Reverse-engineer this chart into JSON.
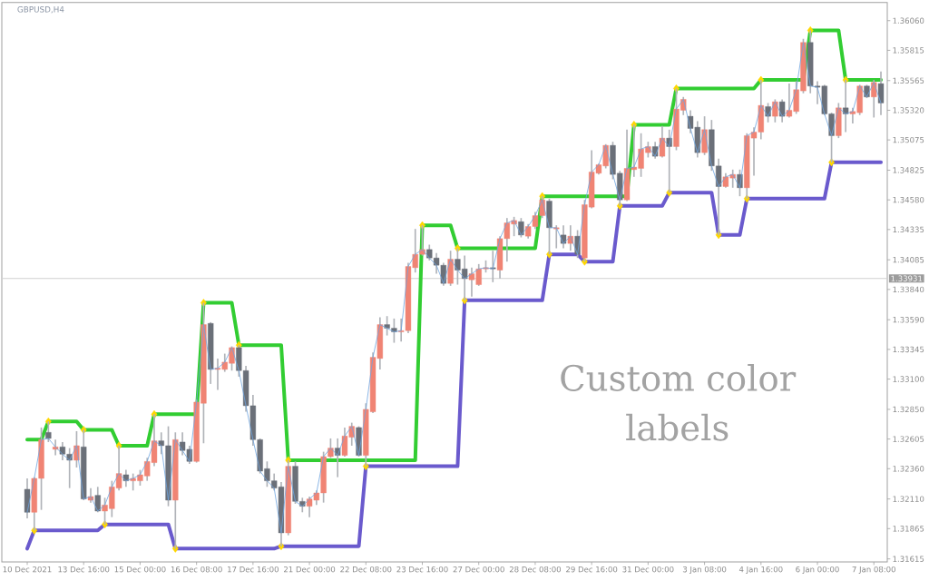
{
  "chart_data": {
    "type": "candlestick",
    "title": "GBPUSD,H4",
    "categories": [
      "10 Dec 2021",
      null,
      null,
      null,
      null,
      null,
      null,
      null,
      "13 Dec 16:00",
      null,
      null,
      null,
      null,
      null,
      null,
      null,
      "15 Dec 00:00",
      null,
      null,
      null,
      null,
      null,
      null,
      null,
      "16 Dec 08:00",
      null,
      null,
      null,
      null,
      null,
      null,
      null,
      "17 Dec 16:00",
      null,
      null,
      null,
      null,
      null,
      null,
      null,
      "21 Dec 00:00",
      null,
      null,
      null,
      null,
      null,
      null,
      null,
      "22 Dec 08:00",
      null,
      null,
      null,
      null,
      null,
      null,
      null,
      "23 Dec 16:00",
      null,
      null,
      null,
      null,
      null,
      null,
      null,
      "27 Dec 00:00",
      null,
      null,
      null,
      null,
      null,
      null,
      null,
      "28 Dec 08:00",
      null,
      null,
      null,
      null,
      null,
      null,
      null,
      "29 Dec 16:00",
      null,
      null,
      null,
      null,
      null,
      null,
      null,
      "31 Dec 00:00",
      null,
      null,
      null,
      null,
      null,
      null,
      null,
      "3 Jan 08:00",
      null,
      null,
      null,
      null,
      null,
      null,
      null,
      "4 Jan 16:00",
      null,
      null,
      null,
      null,
      null,
      null,
      null,
      "6 Jan 00:00",
      null,
      null,
      null,
      null,
      null,
      null,
      null,
      "7 Jan 08:00",
      null
    ],
    "ohlc": [
      [
        1.3219,
        1.3228,
        1.3195,
        1.32
      ],
      [
        1.32,
        1.3229,
        1.3185,
        1.3228
      ],
      [
        1.3228,
        1.327,
        1.3202,
        1.326
      ],
      [
        1.3266,
        1.3275,
        1.3258,
        1.3261
      ],
      [
        1.3252,
        1.326,
        1.3247,
        1.3254
      ],
      [
        1.3254,
        1.3258,
        1.3243,
        1.3248
      ],
      [
        1.3248,
        1.3253,
        1.322,
        1.3243
      ],
      [
        1.3243,
        1.3267,
        1.3237,
        1.3255
      ],
      [
        1.3254,
        1.3268,
        1.321,
        1.3211
      ],
      [
        1.321,
        1.322,
        1.3208,
        1.3213
      ],
      [
        1.3214,
        1.3221,
        1.32,
        1.3201
      ],
      [
        1.3201,
        1.3212,
        1.319,
        1.3206
      ],
      [
        1.3203,
        1.3226,
        1.3196,
        1.3221
      ],
      [
        1.322,
        1.3255,
        1.3218,
        1.3232
      ],
      [
        1.3231,
        1.3235,
        1.3221,
        1.3226
      ],
      [
        1.3226,
        1.3232,
        1.3218,
        1.3228
      ],
      [
        1.3226,
        1.3235,
        1.3222,
        1.3231
      ],
      [
        1.323,
        1.3245,
        1.3226,
        1.3242
      ],
      [
        1.3241,
        1.3281,
        1.3238,
        1.3259
      ],
      [
        1.3259,
        1.3266,
        1.3248,
        1.3255
      ],
      [
        1.3255,
        1.3271,
        1.3205,
        1.321
      ],
      [
        1.321,
        1.3266,
        1.317,
        1.326
      ],
      [
        1.3258,
        1.3266,
        1.3247,
        1.3251
      ],
      [
        1.3252,
        1.3255,
        1.324,
        1.3242
      ],
      [
        1.3242,
        1.3293,
        1.3241,
        1.3291
      ],
      [
        1.329,
        1.3373,
        1.3257,
        1.3355
      ],
      [
        1.3356,
        1.3357,
        1.3306,
        1.3318
      ],
      [
        1.3318,
        1.3327,
        1.3301,
        1.3319
      ],
      [
        1.3318,
        1.3331,
        1.3316,
        1.3324
      ],
      [
        1.3323,
        1.3337,
        1.3317,
        1.3336
      ],
      [
        1.3336,
        1.3338,
        1.3312,
        1.3317
      ],
      [
        1.3317,
        1.3321,
        1.3283,
        1.3288
      ],
      [
        1.3288,
        1.3297,
        1.3255,
        1.326
      ],
      [
        1.326,
        1.3261,
        1.3232,
        1.3234
      ],
      [
        1.3236,
        1.3242,
        1.3221,
        1.3226
      ],
      [
        1.3226,
        1.3232,
        1.3218,
        1.322
      ],
      [
        1.3221,
        1.3225,
        1.3172,
        1.3183
      ],
      [
        1.3183,
        1.3243,
        1.3181,
        1.3238
      ],
      [
        1.3238,
        1.3242,
        1.3207,
        1.3209
      ],
      [
        1.3209,
        1.3212,
        1.32,
        1.3205
      ],
      [
        1.3205,
        1.3213,
        1.3196,
        1.3211
      ],
      [
        1.321,
        1.3218,
        1.3206,
        1.3216
      ],
      [
        1.3216,
        1.325,
        1.3208,
        1.3246
      ],
      [
        1.3246,
        1.3261,
        1.3245,
        1.3253
      ],
      [
        1.3253,
        1.3261,
        1.3229,
        1.3247
      ],
      [
        1.3247,
        1.327,
        1.3246,
        1.3263
      ],
      [
        1.3262,
        1.3274,
        1.3255,
        1.3271
      ],
      [
        1.327,
        1.3271,
        1.3246,
        1.3247
      ],
      [
        1.3247,
        1.329,
        1.3238,
        1.3285
      ],
      [
        1.3283,
        1.3332,
        1.3282,
        1.3328
      ],
      [
        1.3327,
        1.3361,
        1.3318,
        1.3355
      ],
      [
        1.3355,
        1.3362,
        1.3346,
        1.3352
      ],
      [
        1.3352,
        1.336,
        1.334,
        1.3349
      ],
      [
        1.3349,
        1.336,
        1.3341,
        1.335
      ],
      [
        1.335,
        1.3406,
        1.3348,
        1.3403
      ],
      [
        1.3402,
        1.3434,
        1.3398,
        1.3413
      ],
      [
        1.3413,
        1.3437,
        1.3412,
        1.3417
      ],
      [
        1.3417,
        1.3421,
        1.3408,
        1.341
      ],
      [
        1.341,
        1.3414,
        1.3397,
        1.3404
      ],
      [
        1.3404,
        1.3406,
        1.3387,
        1.3389
      ],
      [
        1.3389,
        1.3416,
        1.3387,
        1.3409
      ],
      [
        1.3409,
        1.3418,
        1.3388,
        1.34
      ],
      [
        1.3401,
        1.3412,
        1.3375,
        1.3393
      ],
      [
        1.3392,
        1.3402,
        1.3378,
        1.3397
      ],
      [
        1.3388,
        1.3405,
        1.3387,
        1.3401
      ],
      [
        1.3401,
        1.3408,
        1.3398,
        1.3402
      ],
      [
        1.3402,
        1.3416,
        1.339,
        1.3401
      ],
      [
        1.34,
        1.3428,
        1.3393,
        1.3426
      ],
      [
        1.3426,
        1.3443,
        1.3407,
        1.3439
      ],
      [
        1.3438,
        1.3444,
        1.3428,
        1.3441
      ],
      [
        1.344,
        1.3443,
        1.3427,
        1.3429
      ],
      [
        1.3428,
        1.3438,
        1.3426,
        1.3436
      ],
      [
        1.3436,
        1.3448,
        1.3434,
        1.3445
      ],
      [
        1.3445,
        1.3461,
        1.3443,
        1.3458
      ],
      [
        1.3457,
        1.3459,
        1.3413,
        1.3435
      ],
      [
        1.3434,
        1.3437,
        1.3418,
        1.3435
      ],
      [
        1.3429,
        1.3437,
        1.3418,
        1.3422
      ],
      [
        1.3422,
        1.3437,
        1.3416,
        1.3428
      ],
      [
        1.3428,
        1.3433,
        1.341,
        1.3413
      ],
      [
        1.341,
        1.3458,
        1.3407,
        1.3454
      ],
      [
        1.3452,
        1.3499,
        1.3451,
        1.3481
      ],
      [
        1.348,
        1.3488,
        1.3479,
        1.3487
      ],
      [
        1.3486,
        1.3504,
        1.3484,
        1.3503
      ],
      [
        1.3503,
        1.3506,
        1.3475,
        1.3479
      ],
      [
        1.348,
        1.3482,
        1.3453,
        1.3458
      ],
      [
        1.3458,
        1.3516,
        1.3457,
        1.3484
      ],
      [
        1.3483,
        1.352,
        1.3477,
        1.3485
      ],
      [
        1.3484,
        1.3513,
        1.3477,
        1.35
      ],
      [
        1.3497,
        1.3506,
        1.3493,
        1.3502
      ],
      [
        1.3502,
        1.3506,
        1.3492,
        1.3494
      ],
      [
        1.3494,
        1.3519,
        1.3493,
        1.3509
      ],
      [
        1.3509,
        1.3516,
        1.3464,
        1.3502
      ],
      [
        1.3502,
        1.355,
        1.3499,
        1.3533
      ],
      [
        1.3532,
        1.3543,
        1.3528,
        1.3541
      ],
      [
        1.3527,
        1.3532,
        1.3513,
        1.3517
      ],
      [
        1.3518,
        1.3523,
        1.3493,
        1.3497
      ],
      [
        1.3497,
        1.3527,
        1.3495,
        1.3516
      ],
      [
        1.3516,
        1.3524,
        1.3482,
        1.3486
      ],
      [
        1.3486,
        1.3492,
        1.3429,
        1.3469
      ],
      [
        1.3469,
        1.348,
        1.3468,
        1.3477
      ],
      [
        1.3476,
        1.3483,
        1.3468,
        1.3479
      ],
      [
        1.3479,
        1.3483,
        1.3461,
        1.3468
      ],
      [
        1.3468,
        1.3513,
        1.3459,
        1.3511
      ],
      [
        1.3509,
        1.3518,
        1.3478,
        1.3514
      ],
      [
        1.3514,
        1.3557,
        1.3508,
        1.3536
      ],
      [
        1.3535,
        1.3538,
        1.3522,
        1.3527
      ],
      [
        1.3527,
        1.3541,
        1.3522,
        1.3539
      ],
      [
        1.3539,
        1.3541,
        1.3522,
        1.3527
      ],
      [
        1.3527,
        1.3554,
        1.3526,
        1.3532
      ],
      [
        1.3531,
        1.3556,
        1.3529,
        1.3549
      ],
      [
        1.3548,
        1.3591,
        1.3546,
        1.3588
      ],
      [
        1.3588,
        1.3598,
        1.3546,
        1.3552
      ],
      [
        1.3552,
        1.3556,
        1.3537,
        1.3551
      ],
      [
        1.3552,
        1.3553,
        1.3528,
        1.3529
      ],
      [
        1.3529,
        1.353,
        1.3489,
        1.3511
      ],
      [
        1.3511,
        1.3538,
        1.3509,
        1.3534
      ],
      [
        1.3534,
        1.3557,
        1.3514,
        1.3529
      ],
      [
        1.3529,
        1.3534,
        1.3521,
        1.3531
      ],
      [
        1.353,
        1.3553,
        1.3528,
        1.3552
      ],
      [
        1.3552,
        1.3553,
        1.3542,
        1.3543
      ],
      [
        1.3543,
        1.3557,
        1.3526,
        1.3555
      ],
      [
        1.3554,
        1.3564,
        1.3528,
        1.3538
      ]
    ],
    "colors": [
      "#6b7079",
      "#f08474",
      "#f08474",
      "#6b7079",
      "#f08474",
      "#6b7079",
      "#6b7079",
      "#f08474",
      "#6b7079",
      "#f08474",
      "#6b7079",
      "#f08474",
      "#f08474",
      "#f08474",
      "#6b7079",
      "#f08474",
      "#f08474",
      "#f08474",
      "#f08474",
      "#6b7079",
      "#6b7079",
      "#f08474",
      "#6b7079",
      "#6b7079",
      "#f08474",
      "#f08474",
      "#6b7079",
      "#f08474",
      "#f08474",
      "#f08474",
      "#6b7079",
      "#6b7079",
      "#6b7079",
      "#6b7079",
      "#6b7079",
      "#6b7079",
      "#6b7079",
      "#f08474",
      "#6b7079",
      "#6b7079",
      "#f08474",
      "#f08474",
      "#f08474",
      "#f08474",
      "#6b7079",
      "#f08474",
      "#f08474",
      "#6b7079",
      "#f08474",
      "#f08474",
      "#f08474",
      "#6b7079",
      "#6b7079",
      "#f08474",
      "#f08474",
      "#f08474",
      "#f08474",
      "#6b7079",
      "#6b7079",
      "#6b7079",
      "#f08474",
      "#6b7079",
      "#6b7079",
      "#f08474",
      "#f08474",
      "#f08474",
      "#6b7079",
      "#f08474",
      "#f08474",
      "#f08474",
      "#6b7079",
      "#f08474",
      "#f08474",
      "#f08474",
      "#6b7079",
      "#f08474",
      "#6b7079",
      "#f08474",
      "#6b7079",
      "#f08474",
      "#f08474",
      "#f08474",
      "#f08474",
      "#6b7079",
      "#6b7079",
      "#f08474",
      "#f08474",
      "#f08474",
      "#f08474",
      "#6b7079",
      "#f08474",
      "#6b7079",
      "#f08474",
      "#f08474",
      "#6b7079",
      "#6b7079",
      "#f08474",
      "#6b7079",
      "#6b7079",
      "#f08474",
      "#f08474",
      "#6b7079",
      "#f08474",
      "#f08474",
      "#f08474",
      "#6b7079",
      "#f08474",
      "#6b7079",
      "#f08474",
      "#f08474",
      "#f08474",
      "#6b7079",
      "#6b7079",
      "#6b7079",
      "#6b7079",
      "#f08474",
      "#6b7079",
      "#f08474",
      "#f08474",
      "#6b7079",
      "#f08474",
      "#6b7079"
    ],
    "series": [
      {
        "type": "line",
        "color": "#6ea4e0",
        "values": [
          1.32,
          1.3228,
          1.326,
          1.3261,
          1.3254,
          1.3248,
          1.3243,
          1.3255,
          1.3211,
          1.3213,
          1.3201,
          1.3206,
          1.3221,
          1.3232,
          1.3226,
          1.3228,
          1.3231,
          1.3242,
          1.3259,
          1.3255,
          1.321,
          1.326,
          1.3251,
          1.3242,
          1.3291,
          1.3355,
          1.3318,
          1.3319,
          1.3324,
          1.3336,
          1.3317,
          1.3288,
          1.326,
          1.3234,
          1.3226,
          1.322,
          1.3183,
          1.3238,
          1.3209,
          1.3205,
          1.3211,
          1.3216,
          1.3246,
          1.3253,
          1.3247,
          1.3263,
          1.3271,
          1.3247,
          1.3285,
          1.3328,
          1.3355,
          1.3352,
          1.3349,
          1.335,
          1.3403,
          1.3413,
          1.3417,
          1.341,
          1.3404,
          1.3389,
          1.3409,
          1.34,
          1.3393,
          1.3397,
          1.3401,
          1.3402,
          1.3401,
          1.3426,
          1.3439,
          1.3441,
          1.3429,
          1.3436,
          1.3445,
          1.3458,
          1.3435,
          1.3435,
          1.3422,
          1.3428,
          1.3413,
          1.3454,
          1.3481,
          1.3487,
          1.3503,
          1.3479,
          1.3458,
          1.3484,
          1.3485,
          1.35,
          1.3502,
          1.3494,
          1.3509,
          1.3502,
          1.3533,
          1.3541,
          1.3517,
          1.3497,
          1.3516,
          1.3486,
          1.3469,
          1.3477,
          1.3479,
          1.3468,
          1.3511,
          1.3514,
          1.3536,
          1.3527,
          1.3539,
          1.3527,
          1.3532,
          1.3549,
          1.3588,
          1.3552,
          1.3551,
          1.3529,
          1.3511,
          1.3534,
          1.3529,
          1.3531,
          1.3552,
          1.3543,
          1.3555,
          1.3538
        ]
      },
      {
        "type": "line",
        "color": "#32cd32",
        "values": [
          1.326,
          1.326,
          1.326,
          1.3275,
          1.3275,
          1.3275,
          1.3275,
          1.3275,
          1.3268,
          1.3268,
          1.3268,
          1.3268,
          1.3268,
          1.3255,
          1.3255,
          1.3255,
          1.3255,
          1.3255,
          1.3281,
          1.3281,
          1.3281,
          1.3281,
          1.3281,
          1.3281,
          1.3281,
          1.3373,
          1.3373,
          1.3373,
          1.3373,
          1.3373,
          1.3338,
          1.3338,
          1.3338,
          1.3338,
          1.3338,
          1.3338,
          1.3338,
          1.3243,
          1.3243,
          1.3243,
          1.3243,
          1.3243,
          1.3243,
          1.3243,
          1.3243,
          1.3243,
          1.3243,
          1.3243,
          1.3243,
          1.3243,
          1.3243,
          1.3243,
          1.3243,
          1.3243,
          1.3243,
          1.3243,
          1.3437,
          1.3437,
          1.3437,
          1.3437,
          1.3437,
          1.3418,
          1.3418,
          1.3418,
          1.3418,
          1.3418,
          1.3418,
          1.3418,
          1.3418,
          1.3418,
          1.3418,
          1.3418,
          1.3418,
          1.3461,
          1.3461,
          1.3461,
          1.3461,
          1.3461,
          1.3461,
          1.3461,
          1.3461,
          1.3461,
          1.3461,
          1.3461,
          1.3461,
          1.3461,
          1.352,
          1.352,
          1.352,
          1.352,
          1.352,
          1.352,
          1.355,
          1.355,
          1.355,
          1.355,
          1.355,
          1.355,
          1.355,
          1.355,
          1.355,
          1.355,
          1.355,
          1.355,
          1.3557,
          1.3557,
          1.3557,
          1.3557,
          1.3557,
          1.3557,
          1.3557,
          1.3598,
          1.3598,
          1.3598,
          1.3598,
          1.3598,
          1.3557,
          1.3557,
          1.3557,
          1.3557,
          1.3557,
          1.3557
        ]
      },
      {
        "type": "line",
        "color": "#6a5acd",
        "values": [
          1.317,
          1.3185,
          1.3185,
          1.3185,
          1.3185,
          1.3185,
          1.3185,
          1.3185,
          1.3185,
          1.3185,
          1.3185,
          1.319,
          1.319,
          1.319,
          1.319,
          1.319,
          1.319,
          1.319,
          1.319,
          1.319,
          1.319,
          1.317,
          1.317,
          1.317,
          1.317,
          1.317,
          1.317,
          1.317,
          1.317,
          1.317,
          1.317,
          1.317,
          1.317,
          1.317,
          1.317,
          1.317,
          1.3172,
          1.3172,
          1.3172,
          1.3172,
          1.3172,
          1.3172,
          1.3172,
          1.3172,
          1.3172,
          1.3172,
          1.3172,
          1.3172,
          1.3238,
          1.3238,
          1.3238,
          1.3238,
          1.3238,
          1.3238,
          1.3238,
          1.3238,
          1.3238,
          1.3238,
          1.3238,
          1.3238,
          1.3238,
          1.3238,
          1.3375,
          1.3375,
          1.3375,
          1.3375,
          1.3375,
          1.3375,
          1.3375,
          1.3375,
          1.3375,
          1.3375,
          1.3375,
          1.3375,
          1.3413,
          1.3413,
          1.3413,
          1.3413,
          1.3413,
          1.3407,
          1.3407,
          1.3407,
          1.3407,
          1.3407,
          1.3453,
          1.3453,
          1.3453,
          1.3453,
          1.3453,
          1.3453,
          1.3453,
          1.3464,
          1.3464,
          1.3464,
          1.3464,
          1.3464,
          1.3464,
          1.3464,
          1.3429,
          1.3429,
          1.3429,
          1.3429,
          1.3459,
          1.3459,
          1.3459,
          1.3459,
          1.3459,
          1.3459,
          1.3459,
          1.3459,
          1.3459,
          1.3459,
          1.3459,
          1.3459,
          1.3489,
          1.3489,
          1.3489,
          1.3489,
          1.3489,
          1.3489,
          1.3489,
          1.3489
        ]
      },
      {
        "type": "scatter",
        "color": "#ffd700",
        "marker": "diamond",
        "values": [
          null,
          1.3185,
          null,
          1.3275,
          null,
          null,
          null,
          null,
          1.3268,
          null,
          null,
          1.319,
          null,
          1.3255,
          null,
          null,
          null,
          null,
          1.3281,
          null,
          null,
          1.317,
          null,
          null,
          null,
          1.3373,
          null,
          null,
          null,
          null,
          1.3338,
          null,
          null,
          null,
          null,
          null,
          1.3172,
          1.3243,
          null,
          null,
          null,
          null,
          null,
          null,
          null,
          null,
          null,
          null,
          1.3238,
          null,
          null,
          null,
          null,
          null,
          null,
          null,
          1.3437,
          null,
          null,
          null,
          null,
          1.3418,
          1.3375,
          null,
          null,
          null,
          null,
          null,
          null,
          null,
          null,
          null,
          null,
          1.3461,
          1.3413,
          null,
          null,
          null,
          null,
          1.3407,
          null,
          null,
          null,
          null,
          1.3453,
          null,
          1.352,
          null,
          null,
          null,
          null,
          1.3464,
          1.355,
          null,
          null,
          null,
          null,
          null,
          1.3429,
          null,
          null,
          null,
          1.3459,
          null,
          1.3557,
          null,
          null,
          null,
          null,
          null,
          null,
          1.3598,
          null,
          null,
          1.3489,
          null,
          1.3557,
          null,
          null,
          null,
          null,
          null
        ]
      }
    ],
    "annotations": [
      "Custom color labels"
    ],
    "ref_lines": [
      {
        "axis": "y",
        "value": 1.33931,
        "label": "1.33931",
        "color": "#d0d0d0"
      }
    ],
    "ylim": [
      1.3159,
      1.3621
    ],
    "yticks": [
      1.31615,
      1.31865,
      {
        "value": 1.3211,
        "label": "1.32110"
      },
      {
        "value": 1.3236,
        "label": "1.32360"
      },
      1.32605,
      {
        "value": 1.3285,
        "label": "1.32850"
      },
      {
        "value": 1.331,
        "label": "1.33100"
      },
      1.33345,
      {
        "value": 1.3359,
        "label": "1.33590"
      },
      {
        "value": 1.3384,
        "label": "1.33840"
      },
      1.34085,
      1.34335,
      {
        "value": 1.3458,
        "label": "1.34580"
      },
      1.34825,
      1.35075,
      {
        "value": 1.3532,
        "label": "1.35320"
      },
      1.35565,
      1.35815,
      {
        "value": 1.3606,
        "label": "1.36060"
      }
    ]
  }
}
